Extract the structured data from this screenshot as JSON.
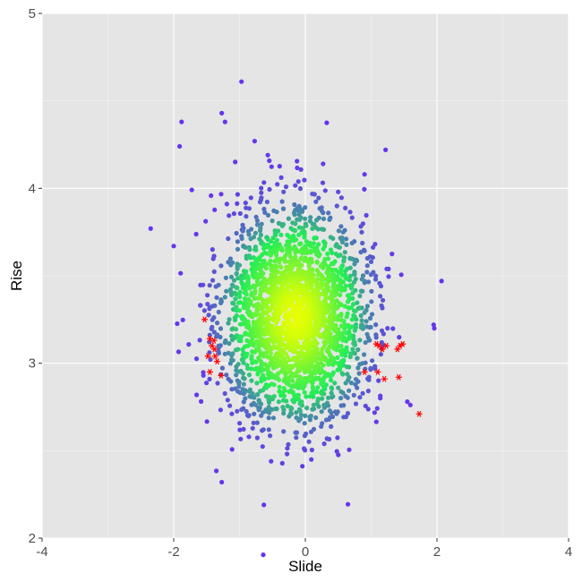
{
  "chart_data": {
    "type": "scatter",
    "title": "",
    "xlabel": "Slide",
    "ylabel": "Rise",
    "xlim": [
      -4,
      4
    ],
    "ylim": [
      2,
      5
    ],
    "x_ticks": [
      -4,
      -2,
      0,
      2,
      4
    ],
    "y_ticks": [
      2,
      3,
      4,
      5
    ],
    "x_tick_labels": [
      "-4",
      "-2",
      "0",
      "2",
      "4"
    ],
    "y_tick_labels": [
      "2",
      "3",
      "4",
      "5"
    ],
    "grid": true,
    "legend": "none",
    "colors": {
      "panel_background": "#e5e5e5",
      "grid": "#ffffff",
      "density_high": "#e6ff00",
      "density_mid": "#22ee55",
      "density_low": "#6633ee",
      "highlight": "#ff0000"
    },
    "series": [
      {
        "marker": "circle",
        "color_by": "density",
        "distribution": {
          "n": 2500,
          "center": [
            -0.15,
            3.27
          ],
          "sd": [
            0.55,
            0.3
          ]
        },
        "points": [
          {
            "x": -0.97,
            "y": 4.61
          },
          {
            "x": -1.88,
            "y": 4.38
          },
          {
            "x": -1.91,
            "y": 4.24
          },
          {
            "x": -1.27,
            "y": 4.43
          },
          {
            "x": -1.22,
            "y": 4.38
          },
          {
            "x": -0.77,
            "y": 4.27
          },
          {
            "x": -0.57,
            "y": 4.19
          },
          {
            "x": 1.22,
            "y": 4.22
          },
          {
            "x": 0.27,
            "y": 4.14
          },
          {
            "x": 0.9,
            "y": 4.08
          },
          {
            "x": -2.35,
            "y": 3.77
          },
          {
            "x": -2.0,
            "y": 3.67
          },
          {
            "x": 2.07,
            "y": 3.47
          },
          {
            "x": 1.95,
            "y": 3.22
          },
          {
            "x": 1.96,
            "y": 3.2
          },
          {
            "x": -0.63,
            "y": 2.19
          },
          {
            "x": -1.27,
            "y": 2.32
          },
          {
            "x": 1.55,
            "y": 2.78
          }
        ]
      },
      {
        "name": "",
        "marker": "asterisk",
        "color": "#ff0000",
        "points": [
          {
            "x": -1.53,
            "y": 3.25
          },
          {
            "x": -1.45,
            "y": 3.14
          },
          {
            "x": -1.39,
            "y": 3.13
          },
          {
            "x": -1.42,
            "y": 3.1
          },
          {
            "x": -1.38,
            "y": 3.08
          },
          {
            "x": -1.48,
            "y": 3.04
          },
          {
            "x": -1.37,
            "y": 3.04
          },
          {
            "x": -1.34,
            "y": 3.01
          },
          {
            "x": -1.45,
            "y": 2.95
          },
          {
            "x": -1.28,
            "y": 2.93
          },
          {
            "x": 0.9,
            "y": 2.95
          },
          {
            "x": 1.08,
            "y": 3.11
          },
          {
            "x": 1.12,
            "y": 3.1
          },
          {
            "x": 1.17,
            "y": 3.08
          },
          {
            "x": 1.23,
            "y": 3.1
          },
          {
            "x": 1.4,
            "y": 3.08
          },
          {
            "x": 1.44,
            "y": 3.1
          },
          {
            "x": 1.48,
            "y": 3.11
          },
          {
            "x": 1.1,
            "y": 2.95
          },
          {
            "x": 1.2,
            "y": 2.91
          },
          {
            "x": 1.42,
            "y": 2.92
          },
          {
            "x": 1.73,
            "y": 2.71
          }
        ]
      }
    ]
  }
}
